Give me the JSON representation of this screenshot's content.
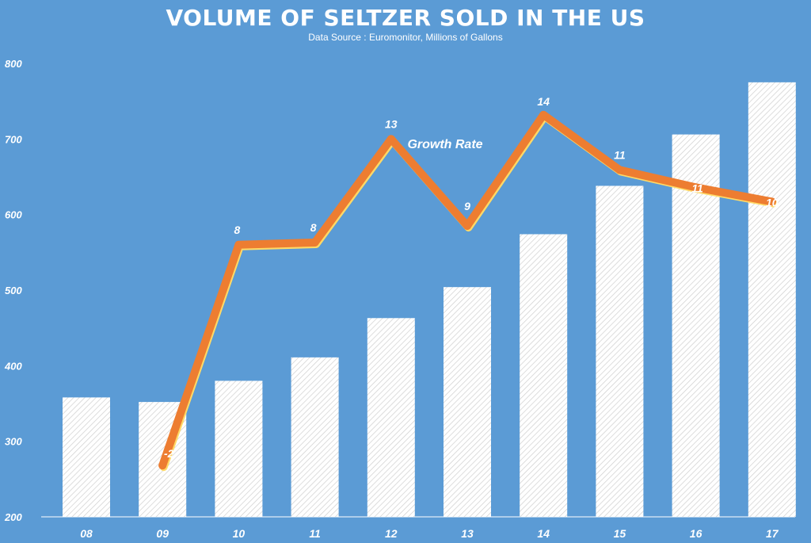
{
  "colors": {
    "background": "#5b9bd5",
    "bar_fill": "#ffffff",
    "bar_hatch": "#d0d0d0",
    "line": "#ed7d31",
    "line_edge": "#ffd966",
    "text": "#ffffff"
  },
  "chart_data": {
    "type": "bar",
    "title": "VOLUME OF SELTZER SOLD IN THE US",
    "subtitle": "Data Source :  Euromonitor, Millions of Gallons",
    "categories": [
      "08",
      "09",
      "10",
      "11",
      "12",
      "13",
      "14",
      "15",
      "16",
      "17"
    ],
    "ylim": [
      200,
      800
    ],
    "yticks": [
      200,
      300,
      400,
      500,
      600,
      700,
      800
    ],
    "series": [
      {
        "name": "Volume",
        "type": "bar",
        "values": [
          358,
          352,
          380,
          411,
          463,
          504,
          574,
          638,
          706,
          775
        ]
      },
      {
        "name": "Growth Rate",
        "type": "line",
        "values": [
          null,
          -2,
          8,
          8,
          13,
          9,
          14,
          11,
          11,
          10
        ],
        "plot_values": [
          null,
          268,
          560,
          563,
          700,
          585,
          732,
          659,
          636,
          617
        ],
        "labels": [
          "",
          "-2",
          "8",
          "8",
          "13",
          "9",
          "14",
          "11",
          "11",
          "10"
        ]
      }
    ],
    "annotations": [
      {
        "text": "Growth Rate",
        "near": "between 12 and 13"
      }
    ]
  }
}
